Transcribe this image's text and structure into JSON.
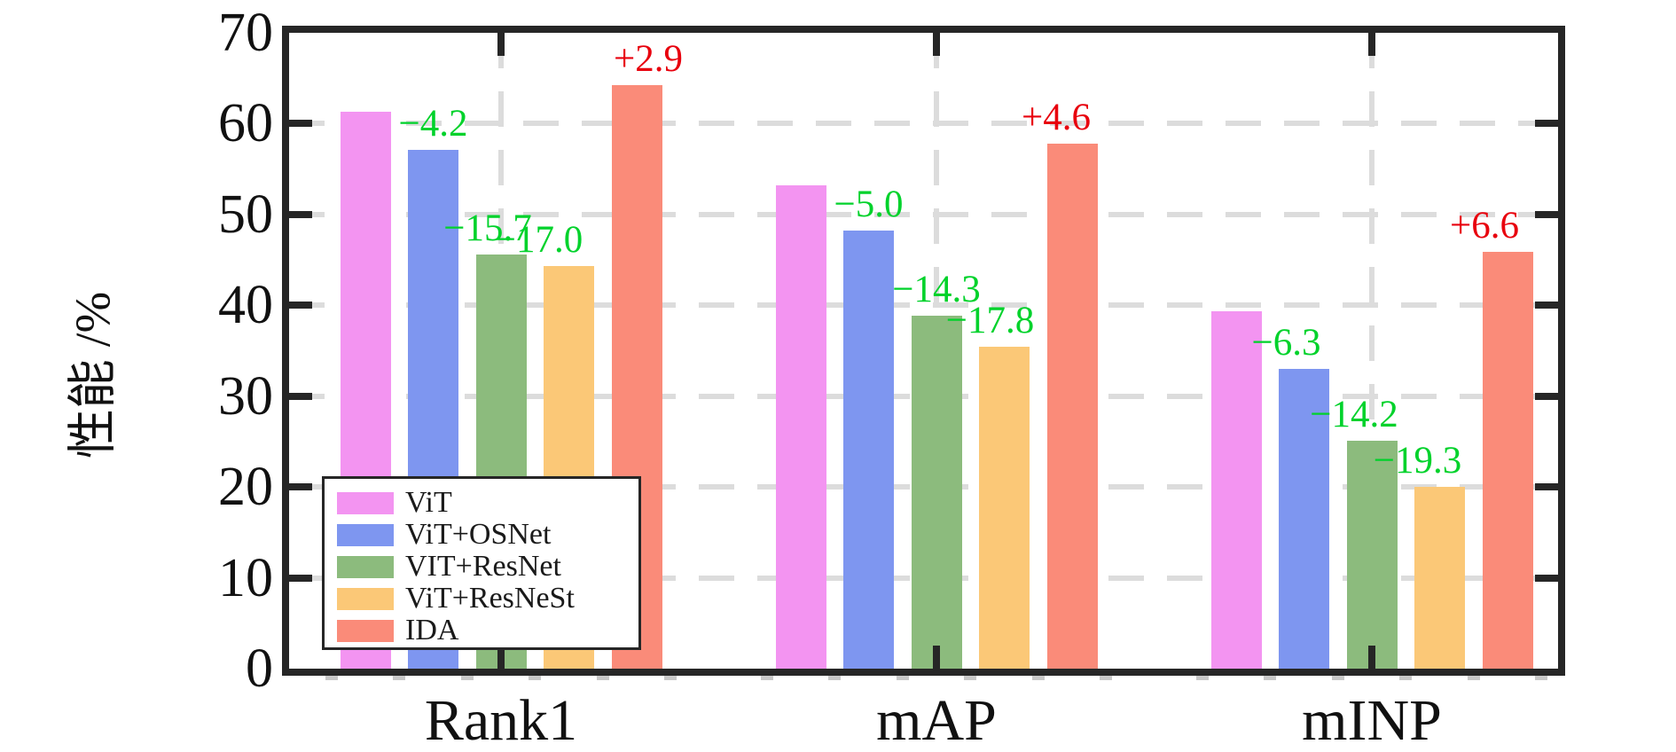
{
  "chart_data": {
    "type": "bar",
    "title": "",
    "ylabel": "性能 /%",
    "xlabel": "",
    "categories": [
      "Rank1",
      "mAP",
      "mINP"
    ],
    "ylim": [
      0,
      70
    ],
    "yticks": [
      0,
      10,
      20,
      30,
      40,
      50,
      60,
      70
    ],
    "grid": "dashed light-gray horizontal lines at each y tick and vertical lines at each category center",
    "legend_position": "lower left",
    "series": [
      {
        "name": "ViT",
        "color": "#f394f1",
        "values": [
          61.3,
          53.2,
          39.3
        ],
        "annotations": [
          null,
          null,
          null
        ]
      },
      {
        "name": "ViT+OSNet",
        "color": "#7e96f0",
        "values": [
          57.1,
          48.2,
          33.0
        ],
        "annotations": [
          "−4.2",
          "−5.0",
          "−6.3"
        ]
      },
      {
        "name": "VIT+ResNet",
        "color": "#8cbb7d",
        "values": [
          45.6,
          38.9,
          25.1
        ],
        "annotations": [
          "−15.7",
          "−14.3",
          "−14.2"
        ]
      },
      {
        "name": "ViT+ResNeSt",
        "color": "#fbc877",
        "values": [
          44.3,
          35.4,
          20.0
        ],
        "annotations": [
          "−17.0",
          "−17.8",
          "−19.3"
        ]
      },
      {
        "name": "IDA",
        "color": "#fa8b79",
        "values": [
          64.2,
          57.8,
          45.9
        ],
        "annotations": [
          "+2.9",
          "+4.6",
          "+6.6"
        ]
      }
    ],
    "annotation_colors": {
      "negative": "#00d22b",
      "positive": "#e8000d"
    },
    "axis_color": "#262626",
    "text_color": "#111111",
    "grid_color": "#dcdcdc"
  }
}
